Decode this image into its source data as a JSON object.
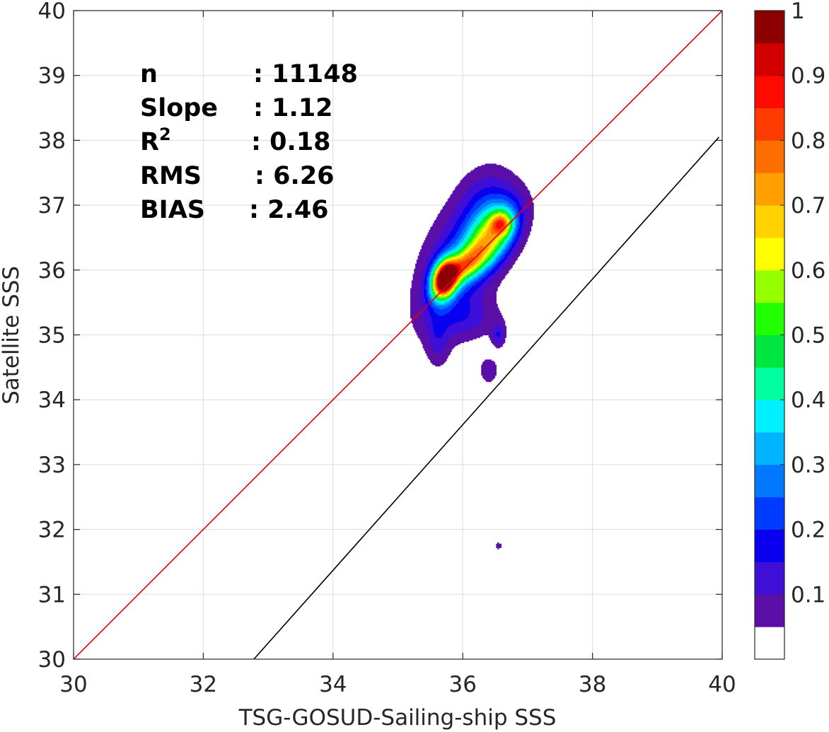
{
  "chart_data": {
    "type": "contour",
    "xlabel": "TSG-GOSUD-Sailing-ship SSS",
    "ylabel": "Satellite SSS",
    "xlim": [
      30,
      40
    ],
    "ylim": [
      30,
      40
    ],
    "xticks": [
      30,
      32,
      34,
      36,
      38,
      40
    ],
    "yticks": [
      30,
      31,
      32,
      33,
      34,
      35,
      36,
      37,
      38,
      39,
      40
    ],
    "grid": true,
    "colorbar": {
      "min": 0,
      "max": 1,
      "ticks": [
        0.1,
        0.2,
        0.3,
        0.4,
        0.5,
        0.6,
        0.7,
        0.8,
        0.9,
        1
      ],
      "tick_labels": [
        "0.1",
        "0.2",
        "0.3",
        "0.4",
        "0.5",
        "0.6",
        "0.7",
        "0.8",
        "0.9",
        "1"
      ],
      "colors": [
        "#ffffff",
        "#5b0fa8",
        "#3f0fd8",
        "#0a00f0",
        "#003cff",
        "#0078ff",
        "#00b4ff",
        "#00f0ff",
        "#00ffa0",
        "#00e640",
        "#22ff00",
        "#96ff00",
        "#ffff00",
        "#ffd200",
        "#ffa000",
        "#ff6e00",
        "#ff3c00",
        "#ff0a00",
        "#d20000",
        "#8c0000"
      ]
    },
    "stats": [
      {
        "key": "n",
        "value": ": 11148"
      },
      {
        "key": "Slope",
        "value": ": 1.12"
      },
      {
        "key": "R",
        "sup": "2",
        "value": ": 0.18"
      },
      {
        "key": "RMS",
        "value": ": 6.26"
      },
      {
        "key": "BIAS",
        "value": ": 2.46"
      }
    ],
    "lines": [
      {
        "name": "1:1 line",
        "color": "#e00000",
        "x": [
          30,
          40
        ],
        "y": [
          30,
          40
        ]
      },
      {
        "name": "regression fit",
        "color": "#000000",
        "x": [
          32.78,
          39.95
        ],
        "y": [
          30,
          38.05
        ]
      }
    ],
    "density_peaks": [
      {
        "x": 35.75,
        "y": 35.85,
        "level": 1.0
      },
      {
        "x": 36.6,
        "y": 36.7,
        "level": 0.85
      }
    ],
    "contour_levels": [
      0.05,
      0.1,
      0.15,
      0.2,
      0.25,
      0.3,
      0.35,
      0.4,
      0.45,
      0.5,
      0.55,
      0.6,
      0.65,
      0.7,
      0.75,
      0.8,
      0.85,
      0.9,
      0.95
    ]
  }
}
